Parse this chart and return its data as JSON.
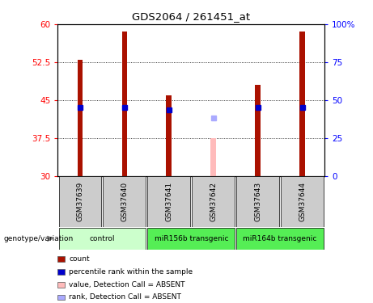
{
  "title": "GDS2064 / 261451_at",
  "samples": [
    "GSM37639",
    "GSM37640",
    "GSM37641",
    "GSM37642",
    "GSM37643",
    "GSM37644"
  ],
  "bar_values": [
    53.0,
    58.5,
    46.0,
    null,
    48.0,
    58.5
  ],
  "rank_values": [
    43.5,
    43.5,
    43.0,
    null,
    43.5,
    43.5
  ],
  "absent_value": 37.5,
  "absent_rank": 41.5,
  "absent_sample_idx": 3,
  "ylim_left": [
    30,
    60
  ],
  "ylim_right": [
    0,
    100
  ],
  "yticks_left": [
    30,
    37.5,
    45,
    52.5,
    60
  ],
  "ytick_labels_left": [
    "30",
    "37.5",
    "45",
    "52.5",
    "60"
  ],
  "yticks_right": [
    0,
    25,
    50,
    75,
    100
  ],
  "ytick_labels_right": [
    "0",
    "25",
    "50",
    "75",
    "100%"
  ],
  "bar_color": "#aa1100",
  "rank_color": "#0000cc",
  "absent_bar_color": "#ffbbbb",
  "absent_rank_color": "#aaaaff",
  "bar_width": 0.12,
  "legend_items": [
    {
      "color": "#aa1100",
      "label": "count"
    },
    {
      "color": "#0000cc",
      "label": "percentile rank within the sample"
    },
    {
      "color": "#ffbbbb",
      "label": "value, Detection Call = ABSENT"
    },
    {
      "color": "#aaaaff",
      "label": "rank, Detection Call = ABSENT"
    }
  ],
  "genotype_label": "genotype/variation",
  "sample_box_color": "#cccccc",
  "group_defs": [
    {
      "label": "control",
      "start": 0,
      "end": 1,
      "color": "#ccffcc"
    },
    {
      "label": "miR156b transgenic",
      "start": 2,
      "end": 3,
      "color": "#55ee55"
    },
    {
      "label": "miR164b transgenic",
      "start": 4,
      "end": 5,
      "color": "#55ee55"
    }
  ]
}
